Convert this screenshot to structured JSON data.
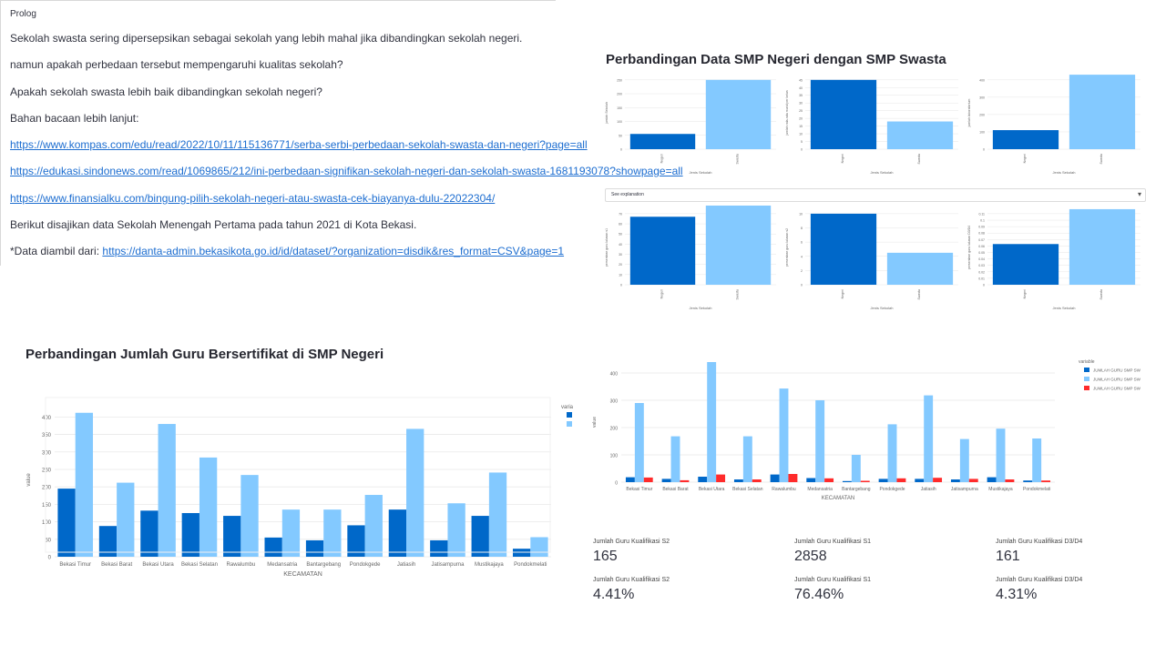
{
  "prolog": {
    "label": "Prolog",
    "p1": "Sekolah swasta sering dipersepsikan sebagai sekolah yang lebih mahal jika dibandingkan sekolah negeri.",
    "p2": "namun apakah perbedaan tersebut mempengaruhi kualitas sekolah?",
    "p3": "Apakah sekolah swasta lebih baik dibandingkan sekolah negeri?",
    "p4": "Bahan bacaan lebih lanjut:",
    "link1": "https://www.kompas.com/edu/read/2022/10/11/115136771/serba-serbi-perbedaan-sekolah-swasta-dan-negeri?page=all",
    "link2": "https://edukasi.sindonews.com/read/1069865/212/ini-perbedaan-signifikan-sekolah-negeri-dan-sekolah-swasta-1681193078?showpage=all",
    "link3": "https://www.finansialku.com/bingung-pilih-sekolah-negeri-atau-swasta-cek-biayanya-dulu-22022304/",
    "p5": "Berikut disajikan data Sekolah Menengah Pertama pada tahun 2021 di Kota Bekasi.",
    "source_prefix": "*Data diambil dari: ",
    "source_link": "https://danta-admin.bekasikota.go.id/id/dataset/?organization=disdik&res_format=CSV&page=1"
  },
  "right_panel": {
    "title": "Perbandingan Data SMP Negeri dengan SMP Swasta",
    "select_value": "See explanation"
  },
  "left_chart_title": "Perbandingan Jumlah Guru Bersertifikat di SMP Negeri",
  "colors": {
    "negeri": "#0068c9",
    "swasta": "#83c9ff",
    "red": "#ff2b2b"
  },
  "mini_charts": [
    {
      "ylabel": "jumlah Sekolah",
      "xlabel": "Jenis Sekolah",
      "categories": [
        "Negeri",
        "Swasta"
      ],
      "values": [
        55,
        250
      ],
      "yticks": [
        0,
        50,
        100,
        150,
        200,
        250
      ]
    },
    {
      "ylabel": "jumlah rata-rata murid per kelas",
      "xlabel": "Jenis Sekolah",
      "categories": [
        "Negeri",
        "Swasta"
      ],
      "values": [
        45,
        18
      ],
      "yticks": [
        0,
        5,
        10,
        15,
        20,
        25,
        30,
        35,
        40,
        45
      ]
    },
    {
      "ylabel": "jumlah laboratorium",
      "xlabel": "Jenis Sekolah",
      "categories": [
        "Negeri",
        "Swasta"
      ],
      "values": [
        110,
        430
      ],
      "yticks": [
        0,
        100,
        200,
        300,
        400
      ]
    },
    {
      "ylabel": "persentase guru lulusan s1",
      "xlabel": "Jenis Sekolah",
      "categories": [
        "Negeri",
        "Swasta"
      ],
      "values": [
        67,
        78
      ],
      "yticks": [
        0,
        10,
        20,
        30,
        40,
        50,
        60,
        70
      ]
    },
    {
      "ylabel": "persentase guru lulusan s2",
      "xlabel": "Jenis Sekolah",
      "categories": [
        "Negeri",
        "Swasta"
      ],
      "values": [
        10,
        4.5
      ],
      "yticks": [
        0,
        2,
        4,
        6,
        8,
        10
      ]
    },
    {
      "ylabel": "persentase guru lulusan D3/D4",
      "xlabel": "Jenis Sekolah",
      "categories": [
        "Negeri",
        "Swasta"
      ],
      "values": [
        0.063,
        0.117
      ],
      "yticks": [
        0,
        0.01,
        0.02,
        0.03,
        0.04,
        0.05,
        0.06,
        0.07,
        0.08,
        0.09,
        0.1,
        0.11
      ]
    }
  ],
  "chart_data": [
    {
      "type": "bar",
      "xlabel": "KECAMATAN",
      "ylabel": "value",
      "legend_title": "varia",
      "ylim": [
        0,
        440
      ],
      "yticks": [
        0,
        50,
        100,
        150,
        200,
        250,
        300,
        350,
        400
      ],
      "categories": [
        "Bekasi Timur",
        "Bekasi Barat",
        "Bekasi Utara",
        "Bekasi Selatan",
        "Rawalumbu",
        "Medansatria",
        "Bantargebang",
        "Pondokgede",
        "Jatiasih",
        "Jatisampurna",
        "Mustikajaya",
        "Pondokmelati"
      ],
      "series": [
        {
          "values": [
            195,
            88,
            132,
            125,
            117,
            55,
            47,
            90,
            135,
            47,
            117,
            23
          ]
        },
        {
          "values": [
            412,
            212,
            380,
            284,
            234,
            135,
            135,
            177,
            366,
            153,
            241,
            56
          ]
        }
      ]
    },
    {
      "type": "bar",
      "xlabel": "KECAMATAN",
      "ylabel": "value",
      "legend_title": "variable",
      "ylim": [
        0,
        440
      ],
      "yticks": [
        0,
        100,
        200,
        300,
        400
      ],
      "categories": [
        "Bekasi Timur",
        "Bekasi Barat",
        "Bekasi Utara",
        "Bekasi Selatan",
        "Rawalumbu",
        "Medansatria",
        "Bantargebang",
        "Pondokgede",
        "Jatiasih",
        "Jatisampurna",
        "Mustikajaya",
        "Pondokmelati"
      ],
      "series": [
        {
          "name": "JUMLAH GURU SMP SW",
          "values": [
            18,
            12,
            20,
            10,
            28,
            15,
            4,
            12,
            12,
            10,
            18,
            6
          ]
        },
        {
          "name": "JUMLAH GURU SMP SW",
          "values": [
            290,
            168,
            440,
            168,
            343,
            300,
            100,
            212,
            318,
            158,
            196,
            160
          ]
        },
        {
          "name": "JUMLAH GURU SMP SW",
          "values": [
            17,
            7,
            28,
            10,
            30,
            14,
            5,
            14,
            16,
            12,
            10,
            6
          ]
        }
      ]
    }
  ],
  "metrics": [
    {
      "label": "Jumlah Guru Kualifikasi S2",
      "value": "165"
    },
    {
      "label": "Jumlah Guru Kualifikasi S1",
      "value": "2858"
    },
    {
      "label": "Jumlah Guru Kualifikasi D3/D4",
      "value": "161"
    },
    {
      "label": "Jumlah Guru Kualifikasi S2",
      "value": "4.41%"
    },
    {
      "label": "Jumlah Guru Kualifikasi S1",
      "value": "76.46%"
    },
    {
      "label": "Jumlah Guru Kualifikasi D3/D4",
      "value": "4.31%"
    }
  ]
}
